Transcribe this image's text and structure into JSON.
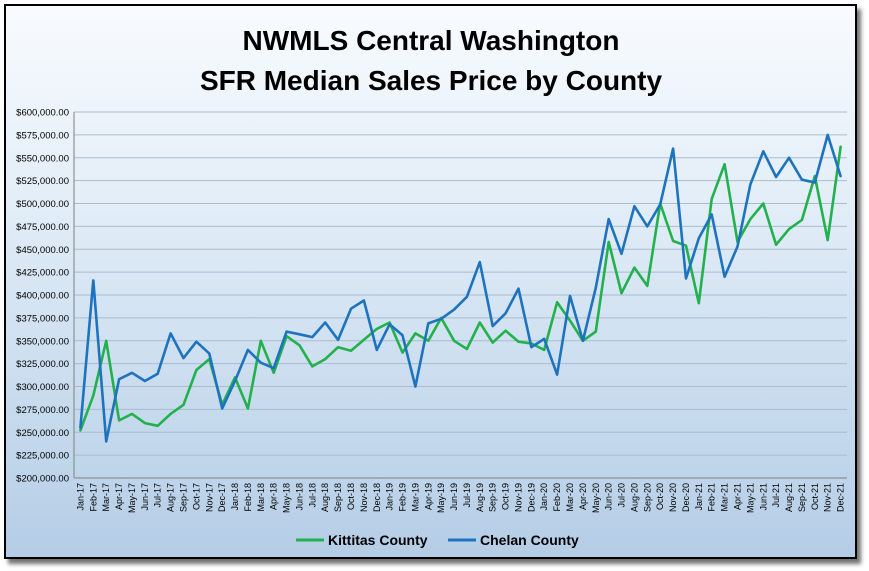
{
  "chart_data": {
    "type": "line",
    "title": [
      "NWMLS Central Washington",
      "SFR Median Sales Price by County"
    ],
    "xlabel": "",
    "ylabel": "",
    "ylim": [
      200000,
      600000
    ],
    "y_step": 25000,
    "y_tick_labels": [
      "$200,000.00",
      "$225,000.00",
      "$250,000.00",
      "$275,000.00",
      "$300,000.00",
      "$325,000.00",
      "$350,000.00",
      "$375,000.00",
      "$400,000.00",
      "$425,000.00",
      "$450,000.00",
      "$475,000.00",
      "$500,000.00",
      "$525,000.00",
      "$550,000.00",
      "$575,000.00",
      "$600,000.00"
    ],
    "grid": true,
    "legend_position": "bottom",
    "categories": [
      "Jan-17",
      "Feb-17",
      "Mar-17",
      "Apr-17",
      "May-17",
      "Jun-17",
      "Jul-17",
      "Aug-17",
      "Sep-17",
      "Oct-17",
      "Nov-17",
      "Dec-17",
      "Jan-18",
      "Feb-18",
      "Mar-18",
      "Apr-18",
      "May-18",
      "Jun-18",
      "Jul-18",
      "Aug-18",
      "Sep-18",
      "Oct-18",
      "Nov-18",
      "Dec-18",
      "Jan-19",
      "Feb-19",
      "Mar-19",
      "Apr-19",
      "May-19",
      "Jun-19",
      "Jul-19",
      "Aug-19",
      "Sep-19",
      "Oct-19",
      "Nov-19",
      "Dec-19",
      "Jan-20",
      "Feb-20",
      "Mar-20",
      "Apr-20",
      "May-20",
      "Jun-20",
      "Jul-20",
      "Aug-20",
      "Sep-20",
      "Oct-20",
      "Nov-20",
      "Dec-20",
      "Jan-21",
      "Feb-21",
      "Mar-21",
      "Apr-21",
      "May-21",
      "Jun-21",
      "Jul-21",
      "Aug-21",
      "Sep-21",
      "Oct-21",
      "Nov-21",
      "Dec-21"
    ],
    "series": [
      {
        "name": "Kittitas County",
        "color": "#22b14c",
        "values": [
          252000,
          290000,
          350000,
          263000,
          270000,
          260000,
          257000,
          270000,
          280000,
          318000,
          330000,
          280000,
          310000,
          276000,
          350000,
          315000,
          355000,
          345000,
          322000,
          330000,
          343000,
          339000,
          351000,
          363000,
          370000,
          337000,
          358000,
          350000,
          375000,
          350000,
          341000,
          370000,
          348000,
          361000,
          349000,
          347000,
          340000,
          392000,
          372000,
          350000,
          360000,
          458000,
          402000,
          430000,
          410000,
          500000,
          459000,
          454000,
          391000,
          505000,
          543000,
          458000,
          483000,
          500000,
          455000,
          472000,
          482000,
          530000,
          460000,
          562000
        ]
      },
      {
        "name": "Chelan County",
        "color": "#1e73be",
        "values": [
          255000,
          416000,
          240000,
          308000,
          315000,
          306000,
          314000,
          358000,
          331000,
          349000,
          336000,
          276000,
          306000,
          340000,
          326000,
          320000,
          360000,
          357000,
          354000,
          370000,
          351000,
          385000,
          394000,
          340000,
          368000,
          356000,
          300000,
          369000,
          374000,
          384000,
          398000,
          436000,
          366000,
          380000,
          407000,
          343000,
          352000,
          313000,
          399000,
          350000,
          408000,
          483000,
          445000,
          497000,
          475000,
          499000,
          560000,
          418000,
          462000,
          488000,
          420000,
          453000,
          521000,
          557000,
          529000,
          550000,
          526000,
          523000,
          575000,
          530000
        ]
      }
    ]
  }
}
